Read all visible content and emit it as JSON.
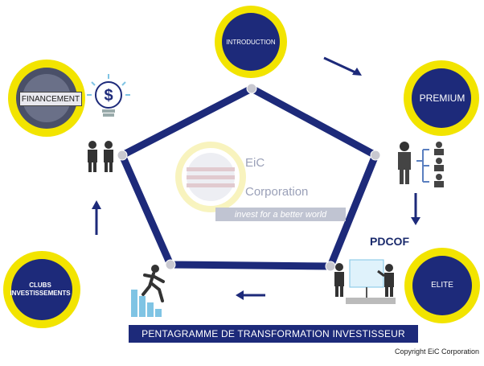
{
  "nodes": {
    "introduction": "INTRODUCTION",
    "premium": "PREMIUM",
    "elite": "ELITE",
    "clubs_line1": "CLUBS",
    "clubs_line2": "INVESTISSEMENTS",
    "financement": "FINANCEMENT"
  },
  "pdcof": "PDCOF",
  "banner": "PENTAGRAMME DE TRANSFORMATION INVESTISSEUR",
  "logo": {
    "name_line1": "EiC",
    "name_line2": "Corporation",
    "tagline": "invest for a better world"
  },
  "copyright": "Copyright EiC Corporation",
  "colors": {
    "navy": "#1d2a7a",
    "yellow": "#f2e400",
    "grey_node": "#c8c8d0",
    "logo_grey": "#9aa0b8"
  },
  "icons": [
    "dollar-bulb-icon",
    "handshake-icon",
    "org-chart-icon",
    "presentation-icon",
    "runner-stairs-icon",
    "financement-seal-icon"
  ]
}
